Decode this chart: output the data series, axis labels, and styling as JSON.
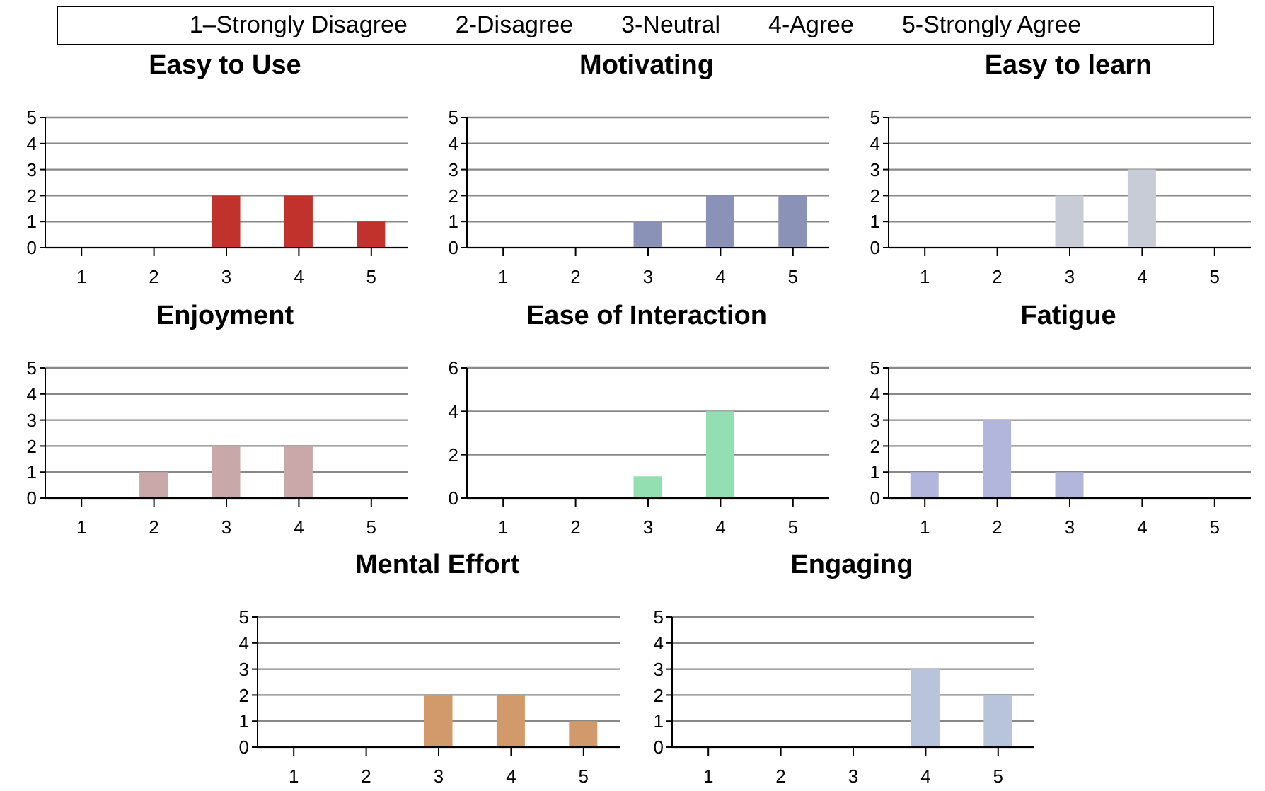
{
  "chart_data": [
    {
      "type": "other",
      "annotations": [
        "1–Strongly Disagree",
        "2-Disagree",
        "3-Neutral",
        "4-Agree",
        "5-Strongly Agree"
      ]
    },
    {
      "type": "bar",
      "title": "Easy to Use",
      "categories": [
        "1",
        "2",
        "3",
        "4",
        "5"
      ],
      "values": [
        0,
        0,
        2,
        2,
        1
      ],
      "color": "#c0322b",
      "ylim": [
        0,
        5
      ],
      "yticks": [
        0,
        1,
        2,
        3,
        4,
        5
      ],
      "grid": "y"
    },
    {
      "type": "bar",
      "title": "Motivating",
      "categories": [
        "1",
        "2",
        "3",
        "4",
        "5"
      ],
      "values": [
        0,
        0,
        1,
        2,
        2
      ],
      "color": "#8a92b8",
      "ylim": [
        0,
        5
      ],
      "yticks": [
        0,
        1,
        2,
        3,
        4,
        5
      ],
      "grid": "y"
    },
    {
      "type": "bar",
      "title": "Easy to learn",
      "categories": [
        "1",
        "2",
        "3",
        "4",
        "5"
      ],
      "values": [
        0,
        0,
        2,
        3,
        0
      ],
      "color": "#c8ccd6",
      "ylim": [
        0,
        5
      ],
      "yticks": [
        0,
        1,
        2,
        3,
        4,
        5
      ],
      "grid": "y"
    },
    {
      "type": "bar",
      "title": "Enjoyment",
      "categories": [
        "1",
        "2",
        "3",
        "4",
        "5"
      ],
      "values": [
        0,
        1,
        2,
        2,
        0
      ],
      "color": "#c8a8a8",
      "ylim": [
        0,
        5
      ],
      "yticks": [
        0,
        1,
        2,
        3,
        4,
        5
      ],
      "grid": "y"
    },
    {
      "type": "bar",
      "title": "Ease of Interaction",
      "categories": [
        "1",
        "2",
        "3",
        "4",
        "5"
      ],
      "values": [
        0,
        0,
        1,
        4,
        0
      ],
      "color": "#94dfb2",
      "ylim": [
        0,
        6
      ],
      "yticks": [
        0,
        2,
        4,
        6
      ],
      "grid": "y"
    },
    {
      "type": "bar",
      "title": "Fatigue",
      "categories": [
        "1",
        "2",
        "3",
        "4",
        "5"
      ],
      "values": [
        1,
        3,
        1,
        0,
        0
      ],
      "color": "#b2b6dc",
      "ylim": [
        0,
        5
      ],
      "yticks": [
        0,
        1,
        2,
        3,
        4,
        5
      ],
      "grid": "y"
    },
    {
      "type": "bar",
      "title": "Mental Effort",
      "categories": [
        "1",
        "2",
        "3",
        "4",
        "5"
      ],
      "values": [
        0,
        0,
        2,
        2,
        1
      ],
      "color": "#d29a6a",
      "ylim": [
        0,
        5
      ],
      "yticks": [
        0,
        1,
        2,
        3,
        4,
        5
      ],
      "grid": "y"
    },
    {
      "type": "bar",
      "title": "Engaging",
      "categories": [
        "1",
        "2",
        "3",
        "4",
        "5"
      ],
      "values": [
        0,
        0,
        0,
        3,
        2
      ],
      "color": "#b8c4dc",
      "ylim": [
        0,
        5
      ],
      "yticks": [
        0,
        1,
        2,
        3,
        4,
        5
      ],
      "grid": "y"
    }
  ]
}
